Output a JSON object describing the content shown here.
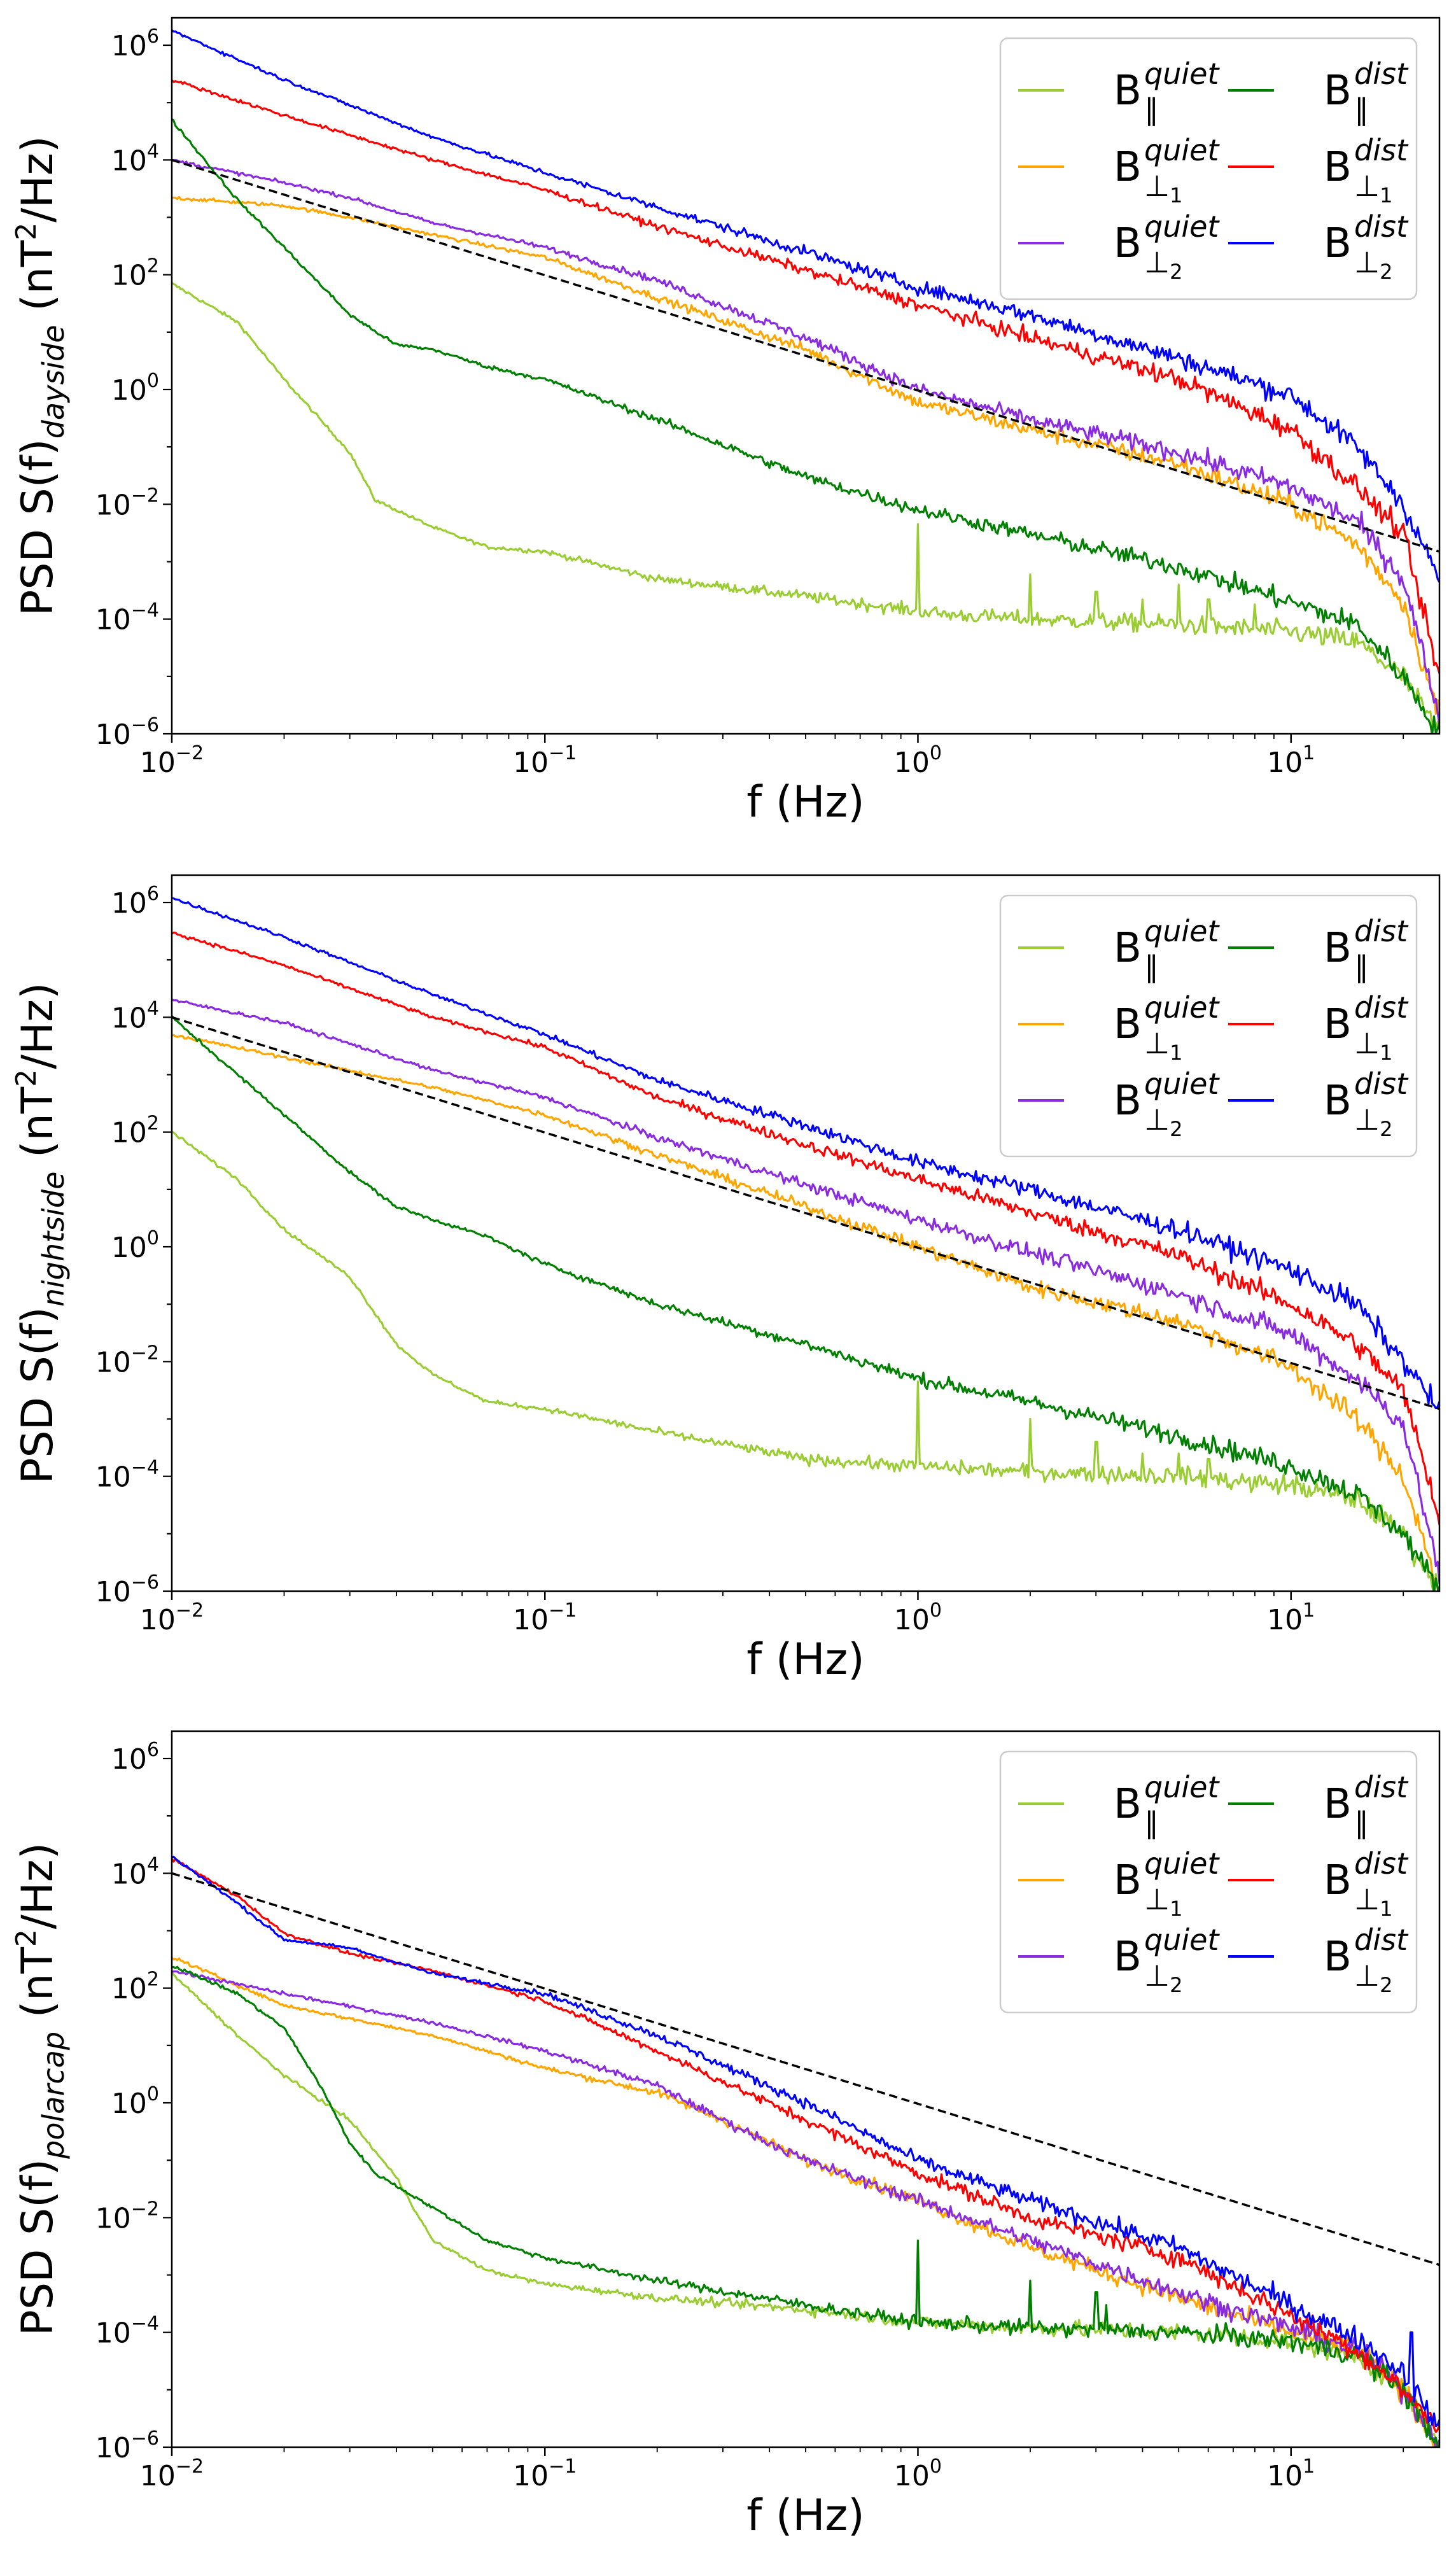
{
  "colors": {
    "quiet_par": "#9acd32",
    "quiet_perp1": "#ffa500",
    "quiet_perp2": "#8a2be2",
    "dist_par": "#008000",
    "dist_perp1": "#ff0000",
    "dist_perp2": "#0000ff",
    "reference": "#000000"
  },
  "legend": [
    {
      "id": "quiet_par",
      "base": "B",
      "sub": "∥",
      "sub_index": "",
      "sup": "quiet"
    },
    {
      "id": "quiet_perp1",
      "base": "B",
      "sub": "⊥",
      "sub_index": "1",
      "sup": "quiet"
    },
    {
      "id": "quiet_perp2",
      "base": "B",
      "sub": "⊥",
      "sub_index": "2",
      "sup": "quiet"
    },
    {
      "id": "dist_par",
      "base": "B",
      "sub": "∥",
      "sub_index": "",
      "sup": "dist"
    },
    {
      "id": "dist_perp1",
      "base": "B",
      "sub": "⊥",
      "sub_index": "1",
      "sup": "dist"
    },
    {
      "id": "dist_perp2",
      "base": "B",
      "sub": "⊥",
      "sub_index": "2",
      "sup": "dist"
    }
  ],
  "chart_data": [
    {
      "type": "line",
      "region": "dayside",
      "ylabel_prefix": "PSD S(f)",
      "ylabel_sub": "dayside",
      "ylabel_unit_pre": "(nT",
      "ylabel_unit_sup": "2",
      "ylabel_unit_post": "/Hz)",
      "xlabel": "f (Hz)",
      "xscale": "log",
      "yscale": "log",
      "xlim": [
        0.01,
        25
      ],
      "ylim": [
        1e-06,
        3000000.0
      ],
      "x_ticks": [
        {
          "value": 0.01,
          "base": "10",
          "exp": "−2"
        },
        {
          "value": 0.1,
          "base": "10",
          "exp": "−1"
        },
        {
          "value": 1,
          "base": "10",
          "exp": "0"
        },
        {
          "value": 10,
          "base": "10",
          "exp": "1"
        }
      ],
      "y_ticks": [
        {
          "value": 1e-06,
          "base": "10",
          "exp": "−6"
        },
        {
          "value": 0.0001,
          "base": "10",
          "exp": "−4"
        },
        {
          "value": 0.01,
          "base": "10",
          "exp": "−2"
        },
        {
          "value": 1,
          "base": "10",
          "exp": "0"
        },
        {
          "value": 100.0,
          "base": "10",
          "exp": "2"
        },
        {
          "value": 10000.0,
          "base": "10",
          "exp": "4"
        },
        {
          "value": 1000000.0,
          "base": "10",
          "exp": "6"
        }
      ],
      "legend_position": "upper-right",
      "reference_line": {
        "style": "dashed",
        "x": [
          0.01,
          25
        ],
        "y": [
          10000,
          0.0015
        ]
      },
      "series": [
        {
          "id": "quiet_par",
          "x": [
            0.01,
            0.015,
            0.02,
            0.03,
            0.035,
            0.05,
            0.07,
            0.1,
            0.2,
            0.5,
            0.9,
            1.2,
            2,
            5,
            10,
            15,
            20,
            25
          ],
          "y": [
            70,
            15,
            1.5,
            0.08,
            0.012,
            0.004,
            0.0018,
            0.0015,
            0.0005,
            0.00025,
            0.00015,
            0.00012,
            0.0001,
            8e-05,
            6e-05,
            4e-05,
            1e-05,
            1e-06
          ],
          "spikes": [
            {
              "x": 1.0,
              "peak": 0.0045
            },
            {
              "x": 2.0,
              "peak": 0.0006
            },
            {
              "x": 3.0,
              "peak": 0.0003
            },
            {
              "x": 4.0,
              "peak": 0.00022
            },
            {
              "x": 5.0,
              "peak": 0.0004
            },
            {
              "x": 6.0,
              "peak": 0.00022
            },
            {
              "x": 8.0,
              "peak": 0.00018
            }
          ]
        },
        {
          "id": "quiet_perp1",
          "x": [
            0.01,
            0.02,
            0.03,
            0.05,
            0.1,
            0.2,
            0.5,
            1,
            2,
            5,
            10,
            15,
            20,
            25
          ],
          "y": [
            2200,
            1600,
            1000,
            500,
            200,
            40,
            5,
            0.6,
            0.2,
            0.05,
            0.01,
            0.002,
            0.0002,
            2e-06
          ]
        },
        {
          "id": "quiet_perp2",
          "x": [
            0.01,
            0.02,
            0.03,
            0.05,
            0.1,
            0.2,
            0.5,
            1,
            2,
            5,
            10,
            15,
            20,
            25
          ],
          "y": [
            10000,
            4000,
            2200,
            800,
            300,
            80,
            8,
            1,
            0.3,
            0.08,
            0.02,
            0.005,
            0.0005,
            2e-06
          ]
        },
        {
          "id": "dist_par",
          "x": [
            0.01,
            0.015,
            0.02,
            0.03,
            0.04,
            0.05,
            0.07,
            0.1,
            0.2,
            0.5,
            1,
            2,
            5,
            10,
            15,
            20,
            25
          ],
          "y": [
            50000,
            2000,
            300,
            20,
            6,
            5,
            2.5,
            1.5,
            0.3,
            0.03,
            0.008,
            0.003,
            0.0008,
            0.0002,
            8e-05,
            1e-05,
            1e-06
          ]
        },
        {
          "id": "dist_perp1",
          "x": [
            0.01,
            0.02,
            0.05,
            0.1,
            0.2,
            0.5,
            1,
            2,
            5,
            10,
            15,
            20,
            25
          ],
          "y": [
            250000,
            60000,
            10000,
            3000,
            700,
            120,
            30,
            8,
            1.5,
            0.2,
            0.02,
            0.003,
            1e-05
          ]
        },
        {
          "id": "dist_perp2",
          "x": [
            0.01,
            0.02,
            0.05,
            0.1,
            0.2,
            0.5,
            1,
            2,
            5,
            10,
            15,
            20,
            25
          ],
          "y": [
            1800000,
            250000,
            25000,
            6000,
            1500,
            250,
            60,
            20,
            3.5,
            0.8,
            0.1,
            0.01,
            0.0005
          ]
        }
      ]
    },
    {
      "type": "line",
      "region": "nightside",
      "ylabel_prefix": "PSD S(f)",
      "ylabel_sub": "nightside",
      "ylabel_unit_pre": "(nT",
      "ylabel_unit_sup": "2",
      "ylabel_unit_post": "/Hz)",
      "xlabel": "f (Hz)",
      "xscale": "log",
      "yscale": "log",
      "xlim": [
        0.01,
        25
      ],
      "ylim": [
        1e-06,
        3000000.0
      ],
      "x_ticks": [
        {
          "value": 0.01,
          "base": "10",
          "exp": "−2"
        },
        {
          "value": 0.1,
          "base": "10",
          "exp": "−1"
        },
        {
          "value": 1,
          "base": "10",
          "exp": "0"
        },
        {
          "value": 10,
          "base": "10",
          "exp": "1"
        }
      ],
      "y_ticks": [
        {
          "value": 1e-06,
          "base": "10",
          "exp": "−6"
        },
        {
          "value": 0.0001,
          "base": "10",
          "exp": "−4"
        },
        {
          "value": 0.01,
          "base": "10",
          "exp": "−2"
        },
        {
          "value": 1,
          "base": "10",
          "exp": "0"
        },
        {
          "value": 100.0,
          "base": "10",
          "exp": "2"
        },
        {
          "value": 10000.0,
          "base": "10",
          "exp": "4"
        },
        {
          "value": 1000000.0,
          "base": "10",
          "exp": "6"
        }
      ],
      "legend_position": "upper-right",
      "reference_line": {
        "style": "dashed",
        "x": [
          0.01,
          25
        ],
        "y": [
          10000,
          0.0015
        ]
      },
      "series": [
        {
          "id": "quiet_par",
          "x": [
            0.01,
            0.015,
            0.02,
            0.03,
            0.04,
            0.05,
            0.07,
            0.1,
            0.2,
            0.5,
            1,
            2,
            5,
            10,
            15,
            20,
            25
          ],
          "y": [
            100,
            15,
            2,
            0.3,
            0.02,
            0.006,
            0.002,
            0.0015,
            0.0006,
            0.0002,
            0.00015,
            0.00012,
            0.0001,
            7e-05,
            4e-05,
            1e-05,
            1e-06
          ],
          "spikes": [
            {
              "x": 1.0,
              "peak": 0.0045
            },
            {
              "x": 2.0,
              "peak": 0.001
            },
            {
              "x": 3.0,
              "peak": 0.0004
            },
            {
              "x": 4.0,
              "peak": 0.00025
            },
            {
              "x": 5.0,
              "peak": 0.00025
            },
            {
              "x": 6.0,
              "peak": 0.0002
            }
          ]
        },
        {
          "id": "quiet_perp1",
          "x": [
            0.01,
            0.02,
            0.05,
            0.1,
            0.2,
            0.5,
            1,
            2,
            5,
            10,
            15,
            20,
            25
          ],
          "y": [
            5000,
            2000,
            600,
            200,
            40,
            5,
            1,
            0.2,
            0.05,
            0.008,
            0.001,
            0.0001,
            1e-06
          ]
        },
        {
          "id": "quiet_perp2",
          "x": [
            0.01,
            0.02,
            0.05,
            0.1,
            0.2,
            0.5,
            1,
            2,
            5,
            10,
            15,
            20,
            25
          ],
          "y": [
            20000,
            8000,
            1200,
            400,
            80,
            12,
            3,
            0.8,
            0.15,
            0.03,
            0.005,
            0.0008,
            2e-06
          ]
        },
        {
          "id": "dist_par",
          "x": [
            0.01,
            0.015,
            0.02,
            0.03,
            0.04,
            0.05,
            0.07,
            0.1,
            0.2,
            0.5,
            1,
            2,
            5,
            10,
            15,
            20,
            25
          ],
          "y": [
            10000,
            1000,
            200,
            20,
            5,
            3,
            1.5,
            0.5,
            0.1,
            0.02,
            0.005,
            0.002,
            0.0005,
            0.00015,
            5e-05,
            1e-05,
            1e-06
          ]
        },
        {
          "id": "dist_perp1",
          "x": [
            0.01,
            0.02,
            0.05,
            0.1,
            0.2,
            0.5,
            1,
            2,
            5,
            10,
            15,
            20,
            25
          ],
          "y": [
            300000,
            80000,
            10000,
            3000,
            400,
            60,
            15,
            4,
            0.7,
            0.1,
            0.02,
            0.003,
            2e-05
          ]
        },
        {
          "id": "dist_perp2",
          "x": [
            0.01,
            0.02,
            0.05,
            0.1,
            0.2,
            0.5,
            1,
            2,
            5,
            10,
            15,
            20,
            25
          ],
          "y": [
            1200000,
            250000,
            25000,
            5000,
            800,
            130,
            30,
            10,
            2,
            0.4,
            0.1,
            0.01,
            0.0015
          ]
        }
      ]
    },
    {
      "type": "line",
      "region": "polarcap",
      "ylabel_prefix": "PSD S(f)",
      "ylabel_sub": "polarcap",
      "ylabel_unit_pre": "(nT",
      "ylabel_unit_sup": "2",
      "ylabel_unit_post": "/Hz)",
      "xlabel": "f (Hz)",
      "xscale": "log",
      "yscale": "log",
      "xlim": [
        0.01,
        25
      ],
      "ylim": [
        1e-06,
        3000000.0
      ],
      "x_ticks": [
        {
          "value": 0.01,
          "base": "10",
          "exp": "−2"
        },
        {
          "value": 0.1,
          "base": "10",
          "exp": "−1"
        },
        {
          "value": 1,
          "base": "10",
          "exp": "0"
        },
        {
          "value": 10,
          "base": "10",
          "exp": "1"
        }
      ],
      "y_ticks": [
        {
          "value": 1e-06,
          "base": "10",
          "exp": "−6"
        },
        {
          "value": 0.0001,
          "base": "10",
          "exp": "−4"
        },
        {
          "value": 0.01,
          "base": "10",
          "exp": "−2"
        },
        {
          "value": 1,
          "base": "10",
          "exp": "0"
        },
        {
          "value": 100.0,
          "base": "10",
          "exp": "2"
        },
        {
          "value": 10000.0,
          "base": "10",
          "exp": "4"
        },
        {
          "value": 1000000.0,
          "base": "10",
          "exp": "6"
        }
      ],
      "legend_position": "upper-right",
      "reference_line": {
        "style": "dashed",
        "x": [
          0.01,
          25
        ],
        "y": [
          10000,
          0.0015
        ]
      },
      "series": [
        {
          "id": "quiet_par",
          "x": [
            0.01,
            0.015,
            0.02,
            0.03,
            0.04,
            0.05,
            0.07,
            0.1,
            0.2,
            0.5,
            1,
            2,
            5,
            10,
            15,
            20,
            25
          ],
          "y": [
            180,
            15,
            3,
            0.5,
            0.05,
            0.004,
            0.0012,
            0.0007,
            0.0004,
            0.00025,
            0.00015,
            0.00012,
            0.0001,
            7e-05,
            4e-05,
            1e-05,
            1e-06
          ]
        },
        {
          "id": "quiet_perp1",
          "x": [
            0.01,
            0.02,
            0.05,
            0.1,
            0.2,
            0.3,
            0.5,
            1,
            2,
            5,
            10,
            15,
            20,
            25
          ],
          "y": [
            350,
            50,
            15,
            4,
            1.5,
            0.5,
            0.1,
            0.02,
            0.003,
            0.0004,
            0.0001,
            5e-05,
            1e-05,
            1e-06
          ]
        },
        {
          "id": "quiet_perp2",
          "x": [
            0.01,
            0.02,
            0.05,
            0.1,
            0.2,
            0.3,
            0.5,
            1,
            2,
            5,
            10,
            15,
            20,
            25
          ],
          "y": [
            200,
            80,
            25,
            8,
            2,
            0.5,
            0.1,
            0.02,
            0.004,
            0.0005,
            0.00012,
            5e-05,
            1e-05,
            1e-06
          ]
        },
        {
          "id": "dist_par",
          "x": [
            0.01,
            0.015,
            0.02,
            0.025,
            0.03,
            0.035,
            0.05,
            0.07,
            0.1,
            0.2,
            0.5,
            1,
            2,
            5,
            10,
            15,
            20,
            25
          ],
          "y": [
            250,
            80,
            20,
            2,
            0.2,
            0.06,
            0.015,
            0.004,
            0.002,
            0.0008,
            0.0003,
            0.00015,
            0.00012,
            0.0001,
            7e-05,
            4e-05,
            1e-05,
            1e-06
          ],
          "spikes": [
            {
              "x": 1.0,
              "peak": 0.004
            },
            {
              "x": 2.0,
              "peak": 0.0008
            },
            {
              "x": 3.0,
              "peak": 0.0005
            },
            {
              "x": 3.2,
              "peak": 0.0003
            }
          ]
        },
        {
          "id": "dist_perp1",
          "x": [
            0.01,
            0.015,
            0.02,
            0.03,
            0.05,
            0.1,
            0.2,
            0.5,
            1,
            2,
            5,
            10,
            15,
            20,
            25
          ],
          "y": [
            18000,
            4000,
            900,
            400,
            200,
            60,
            8,
            0.5,
            0.06,
            0.01,
            0.002,
            0.0002,
            5e-05,
            1e-05,
            2e-06
          ]
        },
        {
          "id": "dist_perp2",
          "x": [
            0.01,
            0.015,
            0.02,
            0.03,
            0.05,
            0.1,
            0.2,
            0.5,
            1,
            2,
            5,
            10,
            15,
            20,
            25
          ],
          "y": [
            20000,
            3000,
            700,
            500,
            180,
            80,
            15,
            1,
            0.1,
            0.02,
            0.003,
            0.0003,
            8e-05,
            2e-05,
            2e-06
          ],
          "spikes": [
            {
              "x": 21.0,
              "peak": 0.0001
            }
          ]
        }
      ]
    }
  ]
}
